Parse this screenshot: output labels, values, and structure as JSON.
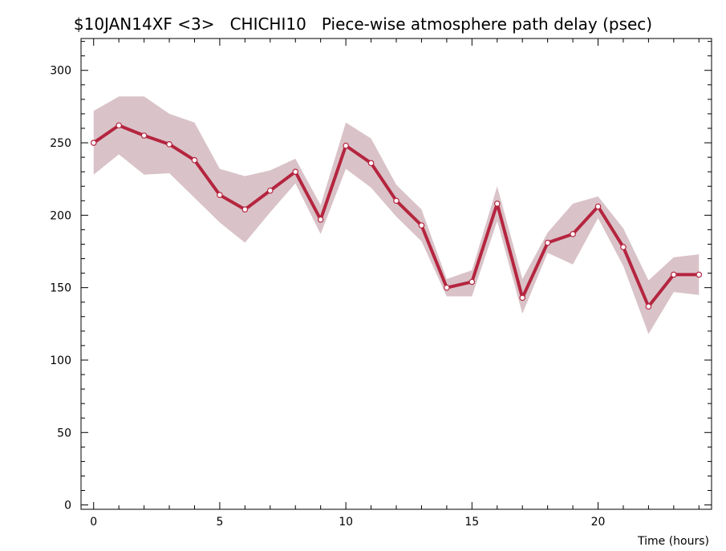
{
  "chart_data": {
    "type": "line",
    "title": "$10JAN14XF <3>   CHICHI10   Piece-wise atmosphere path delay (psec)",
    "xlabel": "Time (hours)",
    "ylabel": "",
    "xlim": [
      -0.5,
      24.5
    ],
    "ylim": [
      -3,
      322
    ],
    "xticks": [
      0,
      5,
      10,
      15,
      20
    ],
    "yticks": [
      0,
      50,
      100,
      150,
      200,
      250,
      300
    ],
    "x": [
      0,
      1,
      2,
      3,
      4,
      5,
      6,
      7,
      8,
      9,
      10,
      11,
      12,
      13,
      14,
      15,
      16,
      17,
      18,
      19,
      20,
      21,
      22,
      23,
      24
    ],
    "series": [
      {
        "values": [
          250,
          262,
          255,
          249,
          238,
          214,
          204,
          217,
          230,
          197,
          248,
          236,
          210,
          193,
          150,
          154,
          208,
          143,
          181,
          187,
          206,
          178,
          137,
          159,
          159
        ],
        "upper": [
          272,
          282,
          282,
          270,
          264,
          232,
          227,
          231,
          239,
          207,
          264,
          253,
          221,
          204,
          156,
          162,
          220,
          156,
          188,
          208,
          213,
          191,
          155,
          171,
          173
        ],
        "lower": [
          228,
          242,
          228,
          229,
          212,
          195,
          181,
          202,
          222,
          187,
          232,
          219,
          199,
          182,
          144,
          144,
          196,
          132,
          174,
          166,
          198,
          165,
          118,
          147,
          145
        ],
        "color": "#b5253f",
        "band_color": "#d9c3c8"
      }
    ]
  }
}
